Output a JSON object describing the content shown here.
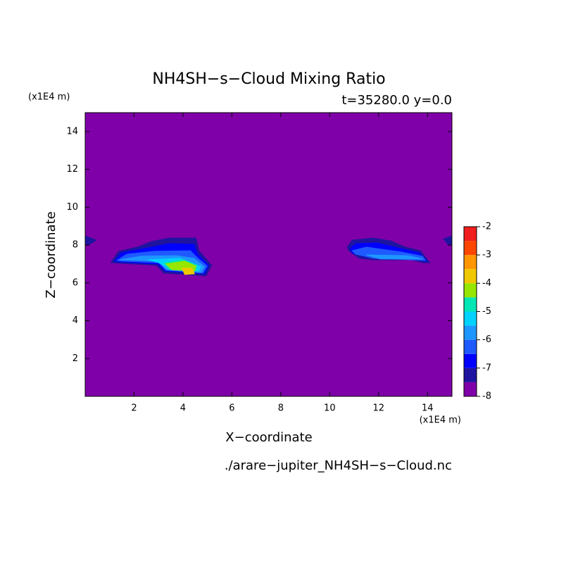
{
  "chart_data": {
    "type": "contour",
    "title": "NH4SH−s−Cloud Mixing Ratio",
    "subtitle": "t=35280.0 y=0.0",
    "x_label": "X−coordinate",
    "y_label": "Z−coordinate",
    "x_unit": "(x1E4 m)",
    "y_unit": "(x1E4 m)",
    "footer": "./arare−jupiter_NH4SH−s−Cloud.nc",
    "xlim": [
      0,
      15
    ],
    "xticks": [
      2,
      4,
      6,
      8,
      10,
      12,
      14
    ],
    "ylim": [
      0,
      15
    ],
    "yticks": [
      2,
      4,
      6,
      8,
      10,
      12,
      14
    ],
    "levels": [
      -8,
      -7.5,
      -7,
      -6.5,
      -6,
      -5.5,
      -5,
      -4.5,
      -4,
      -3.5,
      -3,
      -2.5,
      -2
    ],
    "colors": [
      "#7f00a8",
      "#1e14a0",
      "#0000ff",
      "#1e5aff",
      "#1e96ff",
      "#00d2ff",
      "#00e6b4",
      "#96e600",
      "#f0c800",
      "#ff9600",
      "#ff4600",
      "#f01e1e",
      "#ffaaaa"
    ],
    "colorbar_ticks": [
      -8,
      -7,
      -6,
      -5,
      -4,
      -3,
      -2
    ],
    "contours": [
      {
        "level": -7.5,
        "x": [
          0.0,
          0.45,
          0.2,
          0.0
        ],
        "y": [
          8.48,
          8.26,
          8.04,
          8.04
        ]
      },
      {
        "level": -7.5,
        "x": [
          15,
          14.66,
          14.83,
          15
        ],
        "y": [
          8.48,
          8.33,
          8.04,
          8.04
        ]
      },
      {
        "level": -7.5,
        "x": [
          1.05,
          1.37,
          2.14,
          2.72,
          3.44,
          4.53,
          4.65,
          5.17,
          4.94,
          3.21,
          2.92,
          1.42
        ],
        "y": [
          7.07,
          7.67,
          7.89,
          8.19,
          8.37,
          8.37,
          7.7,
          6.93,
          6.37,
          6.52,
          6.93,
          7.04
        ]
      },
      {
        "level": -7,
        "x": [
          1.2,
          1.48,
          2.29,
          3.44,
          4.45,
          4.59,
          5.05,
          4.88,
          3.27,
          2.98,
          1.42
        ],
        "y": [
          7.15,
          7.59,
          7.78,
          8.07,
          8.04,
          7.52,
          6.93,
          6.48,
          6.63,
          7.0,
          7.11
        ]
      },
      {
        "level": -6.5,
        "x": [
          1.3,
          1.71,
          2.86,
          4.3,
          4.59,
          4.99,
          4.82,
          3.3,
          3.01,
          1.48
        ],
        "y": [
          7.19,
          7.52,
          7.67,
          7.7,
          7.33,
          6.89,
          6.52,
          6.67,
          7.07,
          7.15
        ]
      },
      {
        "level": -6,
        "x": [
          1.42,
          2.29,
          3.73,
          4.45,
          4.88,
          4.76,
          3.32,
          3.01
        ],
        "y": [
          7.22,
          7.41,
          7.44,
          7.3,
          6.85,
          6.56,
          6.7,
          7.15
        ]
      },
      {
        "level": -5.5,
        "x": [
          2.58,
          3.87,
          4.73,
          4.65,
          3.44,
          3.01
        ],
        "y": [
          7.22,
          7.3,
          6.85,
          6.63,
          6.74,
          7.07
        ]
      },
      {
        "level": -5,
        "x": [
          3.21,
          4.01,
          4.59,
          4.53,
          3.44
        ],
        "y": [
          7.07,
          7.22,
          6.93,
          6.63,
          6.7
        ]
      },
      {
        "level": -4.5,
        "x": [
          3.3,
          4.07,
          4.53,
          4.47,
          3.55
        ],
        "y": [
          7.0,
          7.15,
          6.89,
          6.63,
          6.7
        ]
      },
      {
        "level": -4,
        "x": [
          3.96,
          4.36,
          4.47,
          4.07
        ],
        "y": [
          6.78,
          6.78,
          6.48,
          6.44
        ]
      },
      {
        "level": -7.5,
        "x": [
          10.72,
          10.92,
          11.78,
          12.5,
          13.08,
          13.71,
          14.09,
          13.8,
          13.37,
          11.78,
          11.21,
          10.78
        ],
        "y": [
          7.89,
          8.26,
          8.37,
          8.22,
          7.89,
          7.7,
          7.07,
          7.07,
          7.22,
          7.22,
          7.3,
          7.7
        ]
      },
      {
        "level": -7,
        "x": [
          10.83,
          11.06,
          11.93,
          12.94,
          13.65,
          13.97,
          13.51,
          11.5,
          10.92
        ],
        "y": [
          7.81,
          8.07,
          8.11,
          7.81,
          7.59,
          7.15,
          7.22,
          7.37,
          7.59
        ]
      },
      {
        "level": -6.5,
        "x": [
          10.92,
          11.5,
          12.94,
          13.8,
          13.91,
          11.78,
          11.06
        ],
        "y": [
          7.7,
          7.89,
          7.63,
          7.41,
          7.19,
          7.3,
          7.52
        ]
      },
      {
        "level": -6,
        "x": [
          11.5,
          13.22,
          13.8,
          12.07
        ],
        "y": [
          7.48,
          7.44,
          7.26,
          7.26
        ]
      }
    ]
  }
}
